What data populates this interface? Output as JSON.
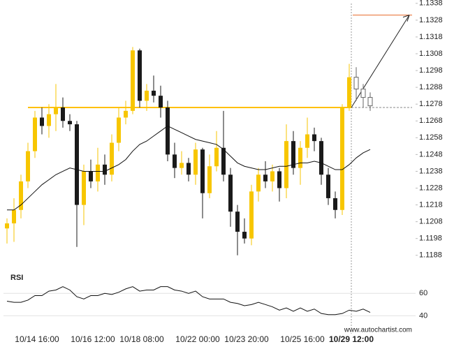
{
  "chart_data": {
    "type": "candlestick",
    "open": [
      1.1204,
      1.1207,
      1.1215,
      1.1232,
      1.125,
      1.127,
      1.1265,
      1.1272,
      1.1276,
      1.1268,
      1.1266,
      1.1218,
      1.1238,
      1.1232,
      1.1242,
      1.1236,
      1.1255,
      1.127,
      1.1274,
      1.131,
      1.128,
      1.1286,
      1.1283,
      1.1276,
      1.1248,
      1.124,
      1.1243,
      1.1236,
      1.1251,
      1.1225,
      1.1241,
      1.1252,
      1.1236,
      1.1214,
      1.1202,
      1.1198,
      1.1226,
      1.1236,
      1.1232,
      1.1238,
      1.1228,
      1.1256,
      1.124,
      1.1252,
      1.126,
      1.1256,
      1.1236,
      1.1222,
      1.1215,
      1.1276,
      1.1294,
      1.1287,
      1.1282
    ],
    "high": [
      1.121,
      1.1222,
      1.1236,
      1.1255,
      1.1274,
      1.1276,
      1.1278,
      1.129,
      1.1282,
      1.1272,
      1.1268,
      1.1242,
      1.1245,
      1.1252,
      1.1248,
      1.126,
      1.1276,
      1.128,
      1.1312,
      1.1311,
      1.129,
      1.1295,
      1.1289,
      1.128,
      1.1255,
      1.125,
      1.1246,
      1.1255,
      1.1252,
      1.1248,
      1.1262,
      1.1274,
      1.124,
      1.1218,
      1.121,
      1.123,
      1.124,
      1.1244,
      1.1242,
      1.124,
      1.1266,
      1.1262,
      1.1256,
      1.127,
      1.1264,
      1.1258,
      1.124,
      1.1226,
      1.1278,
      1.1302,
      1.13,
      1.129,
      1.1285
    ],
    "low": [
      1.1195,
      1.1196,
      1.121,
      1.1228,
      1.1246,
      1.126,
      1.1258,
      1.1262,
      1.1264,
      1.1262,
      1.1193,
      1.1206,
      1.1228,
      1.1226,
      1.123,
      1.1232,
      1.125,
      1.1266,
      1.1272,
      1.1276,
      1.1274,
      1.1279,
      1.127,
      1.1244,
      1.1234,
      1.1236,
      1.1232,
      1.123,
      1.121,
      1.1222,
      1.1238,
      1.1232,
      1.1205,
      1.1188,
      1.1195,
      1.1194,
      1.122,
      1.1228,
      1.1226,
      1.122,
      1.1222,
      1.1236,
      1.123,
      1.1246,
      1.125,
      1.123,
      1.1218,
      1.121,
      1.1212,
      1.1274,
      1.128,
      1.1276,
      1.1274
    ],
    "close": [
      1.1207,
      1.1215,
      1.1232,
      1.125,
      1.127,
      1.1265,
      1.1272,
      1.1276,
      1.1268,
      1.1266,
      1.1218,
      1.1238,
      1.1232,
      1.1242,
      1.1236,
      1.1255,
      1.127,
      1.1274,
      1.131,
      1.128,
      1.1286,
      1.1283,
      1.1276,
      1.1248,
      1.124,
      1.1243,
      1.1236,
      1.1251,
      1.1225,
      1.1241,
      1.1252,
      1.1236,
      1.1214,
      1.1202,
      1.1198,
      1.1226,
      1.1236,
      1.1232,
      1.1238,
      1.1228,
      1.1256,
      1.124,
      1.1252,
      1.126,
      1.1256,
      1.1236,
      1.1222,
      1.1215,
      1.1276,
      1.1294,
      1.1287,
      1.1282,
      1.1277
    ],
    "moving_average": [
      1.1215,
      1.1215,
      1.1218,
      1.1222,
      1.1226,
      1.123,
      1.1233,
      1.1236,
      1.1238,
      1.124,
      1.1239,
      1.1238,
      1.1238,
      1.1238,
      1.1238,
      1.124,
      1.1242,
      1.1245,
      1.125,
      1.1254,
      1.1256,
      1.1259,
      1.1262,
      1.1265,
      1.1263,
      1.1261,
      1.1259,
      1.1257,
      1.1256,
      1.1255,
      1.1254,
      1.1251,
      1.1247,
      1.1243,
      1.1241,
      1.124,
      1.1239,
      1.1239,
      1.124,
      1.1241,
      1.1241,
      1.1242,
      1.1243,
      1.1243,
      1.1244,
      1.1243,
      1.1241,
      1.1239,
      1.1239,
      1.1242,
      1.1246,
      1.1249,
      1.1251
    ],
    "up_color": "#f7c600",
    "down_color": "#1a1a1a",
    "hollow_last": 3,
    "ylim": [
      1.118,
      1.134
    ],
    "yticks": [
      1.1188,
      1.1198,
      1.1208,
      1.1218,
      1.1228,
      1.1238,
      1.1248,
      1.1258,
      1.1268,
      1.1278,
      1.1288,
      1.1298,
      1.1308,
      1.1318,
      1.1328,
      1.1338
    ],
    "xticks": [
      {
        "value": 4,
        "label": "10/14 16:00"
      },
      {
        "value": 12,
        "label": "10/16 12:00"
      },
      {
        "value": 19,
        "label": "10/18 08:00"
      },
      {
        "value": 27,
        "label": "10/22 00:00"
      },
      {
        "value": 34,
        "label": "10/23 20:00"
      },
      {
        "value": 42,
        "label": "10/25 16:00"
      },
      {
        "value": 49,
        "label": "10/29 12:00"
      }
    ],
    "level": 1.1276,
    "level_start": 3,
    "level_color": "#ffc000",
    "target": 1.1331,
    "target_color": "#e8692a",
    "rsi": {
      "title": "RSI",
      "values": [
        53,
        52,
        52,
        54,
        58,
        58,
        62,
        63,
        66,
        63,
        57,
        55,
        58,
        58,
        60,
        59,
        61,
        64,
        66,
        62,
        63,
        63,
        66,
        66,
        63,
        62,
        60,
        62,
        57,
        55,
        55,
        55,
        52,
        51,
        49,
        50,
        52,
        50,
        48,
        45,
        47,
        44,
        47,
        44,
        46,
        42,
        41,
        41,
        42,
        45,
        44,
        46,
        43
      ],
      "ylim": [
        34,
        82
      ],
      "yticks": [
        60,
        40
      ]
    },
    "watermark": "www.autochartist.com"
  }
}
